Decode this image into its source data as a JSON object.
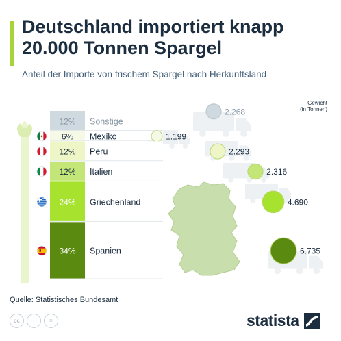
{
  "title": "Deutschland importiert knapp 20.000 Tonnen Spargel",
  "subtitle": "Anteil der Importe von frischem Spargel nach Herkunftsland",
  "chart_data": {
    "type": "table",
    "unit_label": [
      "Gewicht",
      "(in Tonnen)"
    ],
    "rows": [
      {
        "country": "Sonstige",
        "share": 12,
        "share_label": "12%",
        "weight": 2268,
        "weight_label": "2.268",
        "color": "#cfd9e0",
        "flag": "none"
      },
      {
        "country": "Mexiko",
        "share": 6,
        "share_label": "6%",
        "weight": 1199,
        "weight_label": "1.199",
        "color": "#f6f9e6",
        "flag": "mexico-flag"
      },
      {
        "country": "Peru",
        "share": 12,
        "share_label": "12%",
        "weight": 2293,
        "weight_label": "2.293",
        "color": "#eef6c8",
        "flag": "peru-flag"
      },
      {
        "country": "Italien",
        "share": 12,
        "share_label": "12%",
        "weight": 2316,
        "weight_label": "2.316",
        "color": "#c4e678",
        "flag": "italy-flag"
      },
      {
        "country": "Griechenland",
        "share": 24,
        "share_label": "24%",
        "weight": 4690,
        "weight_label": "4.690",
        "color": "#a6e22e",
        "flag": "greece-flag"
      },
      {
        "country": "Spanien",
        "share": 34,
        "share_label": "34%",
        "weight": 6735,
        "weight_label": "6.735",
        "color": "#5b8a10",
        "flag": "spain-flag"
      }
    ]
  },
  "source": "Quelle: Statistisches Bundesamt",
  "license_icons": [
    "cc",
    "i",
    "="
  ],
  "brand": "statista"
}
